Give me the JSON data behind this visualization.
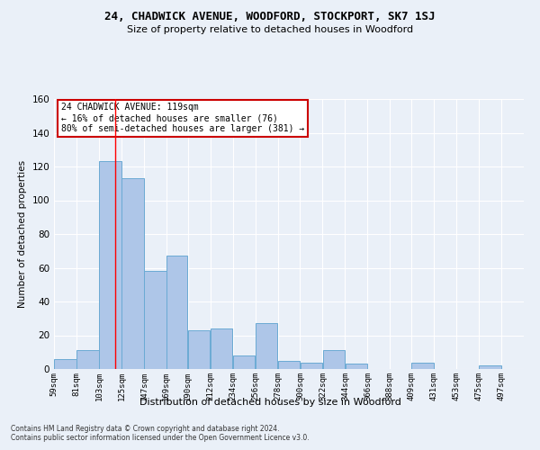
{
  "title1": "24, CHADWICK AVENUE, WOODFORD, STOCKPORT, SK7 1SJ",
  "title2": "Size of property relative to detached houses in Woodford",
  "xlabel": "Distribution of detached houses by size in Woodford",
  "ylabel": "Number of detached properties",
  "footer1": "Contains HM Land Registry data © Crown copyright and database right 2024.",
  "footer2": "Contains public sector information licensed under the Open Government Licence v3.0.",
  "annotation_line1": "24 CHADWICK AVENUE: 119sqm",
  "annotation_line2": "← 16% of detached houses are smaller (76)",
  "annotation_line3": "80% of semi-detached houses are larger (381) →",
  "property_size": 119,
  "bar_left_edges": [
    59,
    81,
    103,
    125,
    147,
    169,
    190,
    212,
    234,
    256,
    278,
    300,
    322,
    344,
    366,
    388,
    409,
    431,
    453,
    475
  ],
  "bar_widths": [
    22,
    22,
    22,
    22,
    22,
    21,
    22,
    22,
    22,
    22,
    22,
    22,
    22,
    22,
    22,
    21,
    22,
    22,
    22,
    22
  ],
  "bar_heights": [
    6,
    11,
    123,
    113,
    58,
    67,
    23,
    24,
    8,
    27,
    5,
    4,
    11,
    3,
    0,
    0,
    4,
    0,
    0,
    2
  ],
  "tick_labels": [
    "59sqm",
    "81sqm",
    "103sqm",
    "125sqm",
    "147sqm",
    "169sqm",
    "190sqm",
    "212sqm",
    "234sqm",
    "256sqm",
    "278sqm",
    "300sqm",
    "322sqm",
    "344sqm",
    "366sqm",
    "388sqm",
    "409sqm",
    "431sqm",
    "453sqm",
    "475sqm",
    "497sqm"
  ],
  "bar_color": "#aec6e8",
  "bar_edge_color": "#6aaad4",
  "redline_x": 119,
  "ylim": [
    0,
    160
  ],
  "yticks": [
    0,
    20,
    40,
    60,
    80,
    100,
    120,
    140,
    160
  ],
  "bg_color": "#eaf0f8",
  "grid_color": "#ffffff",
  "annotation_box_color": "#ffffff",
  "annotation_box_edge": "#cc0000",
  "title1_fontsize": 9,
  "title2_fontsize": 8,
  "xlabel_fontsize": 8,
  "ylabel_fontsize": 7.5,
  "tick_fontsize": 6.5,
  "ytick_fontsize": 7.5,
  "footer_fontsize": 5.5,
  "ann_fontsize": 7
}
